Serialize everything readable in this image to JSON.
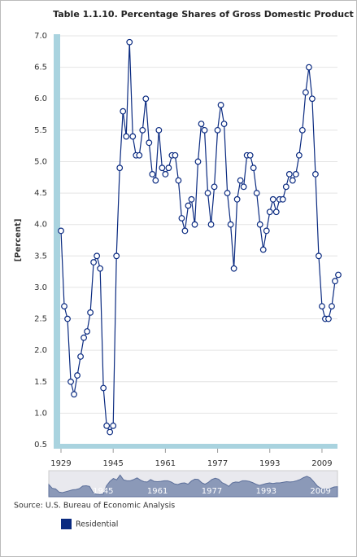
{
  "chart_data": {
    "type": "line",
    "title": "Table 1.1.10. Percentage Shares of Gross Domestic Product",
    "y_label": "[Percent]",
    "source": "Source: U.S. Bureau of Economic Analysis",
    "x": [
      1929,
      1930,
      1931,
      1932,
      1933,
      1934,
      1935,
      1936,
      1937,
      1938,
      1939,
      1940,
      1941,
      1942,
      1943,
      1944,
      1945,
      1946,
      1947,
      1948,
      1949,
      1950,
      1951,
      1952,
      1953,
      1954,
      1955,
      1956,
      1957,
      1958,
      1959,
      1960,
      1961,
      1962,
      1963,
      1964,
      1965,
      1966,
      1967,
      1968,
      1969,
      1970,
      1971,
      1972,
      1973,
      1974,
      1975,
      1976,
      1977,
      1978,
      1979,
      1980,
      1981,
      1982,
      1983,
      1984,
      1985,
      1986,
      1987,
      1988,
      1989,
      1990,
      1991,
      1992,
      1993,
      1994,
      1995,
      1996,
      1997,
      1998,
      1999,
      2000,
      2001,
      2002,
      2003,
      2004,
      2005,
      2006,
      2007,
      2008,
      2009,
      2010,
      2011,
      2012,
      2013,
      2014
    ],
    "series": [
      {
        "name": "Residential",
        "color": "#0a2a80",
        "values": [
          3.9,
          2.7,
          2.5,
          1.5,
          1.3,
          1.6,
          1.9,
          2.2,
          2.3,
          2.6,
          3.4,
          3.5,
          3.3,
          1.4,
          0.8,
          0.7,
          0.8,
          3.5,
          4.9,
          5.8,
          5.4,
          6.9,
          5.4,
          5.1,
          5.1,
          5.5,
          6.0,
          5.3,
          4.8,
          4.7,
          5.5,
          4.9,
          4.8,
          4.9,
          5.1,
          5.1,
          4.7,
          4.1,
          3.9,
          4.3,
          4.4,
          4.0,
          5.0,
          5.6,
          5.5,
          4.5,
          4.0,
          4.6,
          5.5,
          5.9,
          5.6,
          4.5,
          4.0,
          3.3,
          4.4,
          4.7,
          4.6,
          5.1,
          5.1,
          4.9,
          4.5,
          4.0,
          3.6,
          3.9,
          4.2,
          4.4,
          4.2,
          4.4,
          4.4,
          4.6,
          4.8,
          4.7,
          4.8,
          5.1,
          5.5,
          6.1,
          6.5,
          6.0,
          4.8,
          3.5,
          2.7,
          2.5,
          2.5,
          2.7,
          3.1,
          3.2
        ]
      }
    ],
    "xlim": [
      1929,
      2014
    ],
    "xticks": [
      1929,
      1945,
      1961,
      1977,
      1993,
      2009
    ],
    "ylim": [
      0.5,
      7.0
    ],
    "yticks": [
      {
        "value": 0.5,
        "label": "0.5"
      },
      {
        "value": 1,
        "label": "1.0"
      },
      {
        "value": 1.5,
        "label": "1.5"
      },
      {
        "value": 2,
        "label": "2.0"
      },
      {
        "value": 2.5,
        "label": "2.5"
      },
      {
        "value": 3,
        "label": "3.0"
      },
      {
        "value": 3.5,
        "label": "3.5"
      },
      {
        "value": 4,
        "label": "4.0"
      },
      {
        "value": 4.5,
        "label": "4.5"
      },
      {
        "value": 5,
        "label": "5.0"
      },
      {
        "value": 5.5,
        "label": "5.5"
      },
      {
        "value": 6,
        "label": "6.0"
      },
      {
        "value": 6.5,
        "label": "6.5"
      },
      {
        "value": 7,
        "label": "7.0"
      }
    ],
    "grid": true
  }
}
